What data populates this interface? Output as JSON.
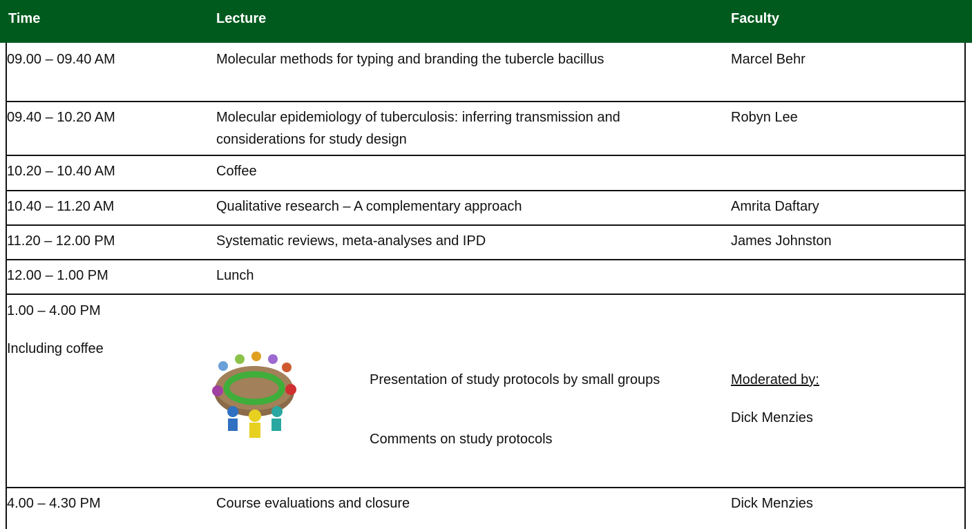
{
  "header": {
    "time": "Time",
    "lecture": "Lecture",
    "faculty": "Faculty"
  },
  "rows": [
    {
      "time": "09.00 – 09.40 AM",
      "lecture": "Molecular methods for typing and branding the tubercle bacillus",
      "faculty": "Marcel Behr"
    },
    {
      "time": "09.40 – 10.20 AM",
      "lecture": "Molecular epidemiology of tuberculosis: inferring transmission and considerations for study design",
      "faculty": "Robyn Lee"
    },
    {
      "time": "10.20 – 10.40 AM",
      "lecture": "Coffee"
    },
    {
      "time": "10.40 – 11.20 AM",
      "lecture": "Qualitative research – A complementary approach",
      "faculty": "Amrita Daftary"
    },
    {
      "time": "11.20 – 12.00 PM",
      "lecture": "Systematic reviews, meta-analyses and IPD",
      "faculty": "James Johnston"
    },
    {
      "time": "12.00 – 1.00 PM",
      "lecture": "Lunch"
    },
    {
      "time": "1.00 – 4.00 PM",
      "time_note": "Including coffee",
      "lecture": "Presentation of study protocols by small groups",
      "lecture_note": "Comments on study protocols",
      "faculty_label": "Moderated by:",
      "faculty": "Dick Menzies"
    },
    {
      "time": "4.00 – 4.30 PM",
      "lecture": "Course evaluations and closure",
      "faculty": "Dick Menzies"
    }
  ]
}
